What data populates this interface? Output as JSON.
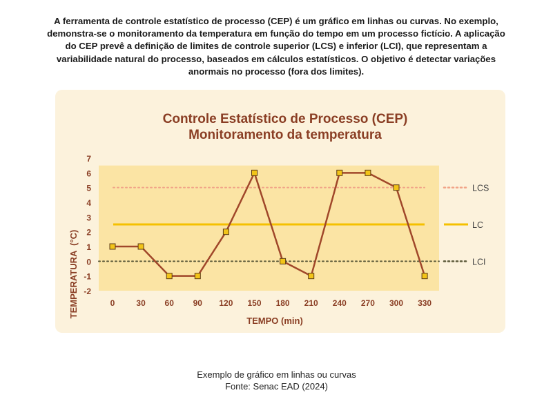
{
  "intro_text": "A ferramenta de controle estatístico de processo (CEP) é um gráfico em linhas ou curvas. No exemplo, demonstra-se o monitoramento da temperatura em função do tempo em um processo fictício. A aplicação do CEP prevê a definição de limites de controle superior (LCS) e inferior (LCI), que representam a variabilidade natural do processo, baseados em cálculos estatísticos. O objetivo é detectar variações anormais no processo (fora dos limites).",
  "caption": {
    "line1": "Exemplo de gráfico em linhas ou curvas",
    "line2": "Fonte: Senac EAD (2024)"
  },
  "colors": {
    "series": "#a0472a",
    "marker_fill": "#f2c418",
    "plot_bg": "#fbe4a4",
    "lcs": "#f1a488",
    "lc": "#f5c000",
    "lci": "#5c5a3a",
    "text": "#8a3e24"
  },
  "chart_data": {
    "type": "line",
    "title": "Controle Estatístico de Processo (CEP)",
    "subtitle": "Monitoramento da temperatura",
    "xlabel": "TEMPO (min)",
    "ylabel": "TEMPERATURA  (°C)",
    "x": [
      0,
      30,
      60,
      90,
      120,
      150,
      180,
      210,
      240,
      270,
      300,
      330
    ],
    "x_tick_labels": [
      "0",
      "30",
      "60",
      "90",
      "120",
      "150",
      "180",
      "210",
      "240",
      "270",
      "300",
      "330"
    ],
    "y_ticks": [
      7,
      6,
      5,
      4,
      3,
      2,
      1,
      0,
      -1,
      -2
    ],
    "y_tick_labels": [
      "7",
      "6",
      "5",
      "4",
      "3",
      "2",
      "1",
      "0",
      "-1",
      "-2"
    ],
    "ylim": [
      -2,
      7
    ],
    "grid": false,
    "legend_placement": "right",
    "series": [
      {
        "values": [
          1,
          1,
          -1,
          -1,
          2,
          6,
          0,
          -1,
          6,
          6,
          5,
          -1
        ]
      }
    ],
    "limits": [
      {
        "label": "LCS",
        "value": 5,
        "style": "dotted"
      },
      {
        "label": "LC",
        "value": 2.5,
        "style": "solid"
      },
      {
        "label": "LCI",
        "value": 0,
        "style": "dotted"
      }
    ]
  }
}
